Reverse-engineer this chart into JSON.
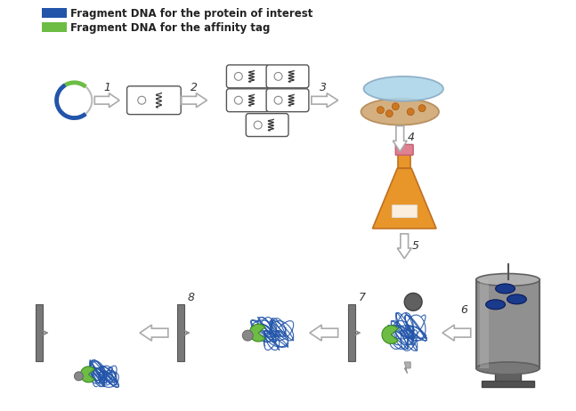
{
  "legend": [
    {
      "label": "Fragment DNA for the protein of interest",
      "color": "#1a3a8c"
    },
    {
      "label": "Fragment DNA for the affinity tag",
      "color": "#6dbd45"
    }
  ],
  "bg_color": "#ffffff",
  "protein_blue": "#2255aa",
  "tag_green": "#6dbd45",
  "tag_dark_green": "#3a8a20",
  "fermentor_gray": "#909090",
  "bar_gray": "#707070"
}
